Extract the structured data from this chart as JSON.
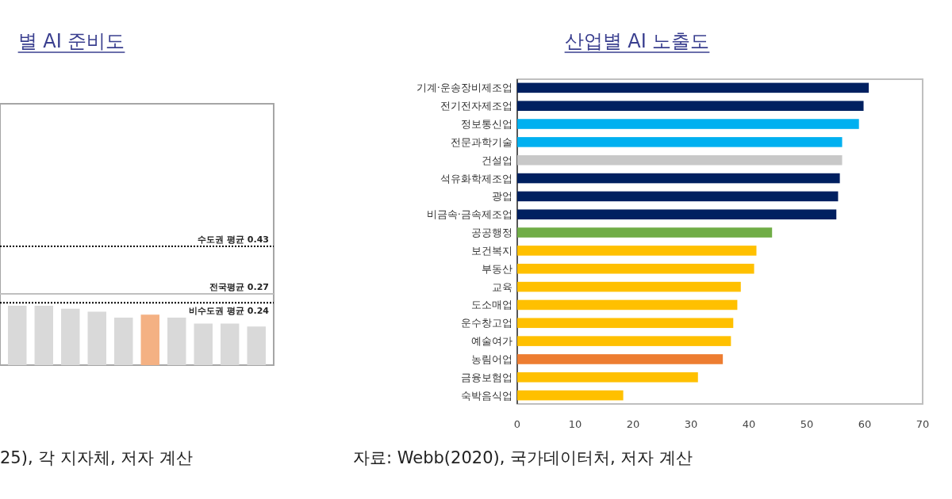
{
  "chart_data": [
    {
      "type": "bar",
      "title": "별 AI 준비도",
      "categories": [
        null,
        null,
        null,
        null,
        null,
        null,
        null,
        null,
        null,
        null
      ],
      "series": [
        {
          "colors": [
            "#d9d9d9",
            "#d9d9d9",
            "#d9d9d9",
            "#d9d9d9",
            "#d9d9d9",
            "#f4b183",
            "#d9d9d9",
            "#d9d9d9",
            "#d9d9d9",
            "#d9d9d9"
          ],
          "values": [
            0.23,
            0.23,
            0.22,
            0.21,
            0.19,
            0.2,
            0.19,
            0.17,
            0.17,
            0.16
          ]
        }
      ],
      "ylim": [
        0.03,
        0.91
      ],
      "ref_lines": [
        {
          "axis": "y",
          "value": 0.43,
          "label": "수도권 평균 0.43",
          "color": "#000000",
          "line_style": "dotted"
        },
        {
          "axis": "y",
          "value": 0.27,
          "label": "전국평균 0.27",
          "color": "#bfbfbf",
          "line_style": "solid"
        },
        {
          "axis": "y",
          "value": 0.24,
          "label": "비수도권 평균 0.24",
          "color": "#000000",
          "line_style": "dotted"
        }
      ],
      "annotations": [
        "25), 각 지자체, 저자 계산"
      ]
    },
    {
      "type": "bar",
      "orientation": "horizontal",
      "title": "산업별 AI 노출도",
      "categories": [
        "기계·운송장비제조업",
        "전기전자제조업",
        "정보통신업",
        "전문과학기술",
        "건설업",
        "석유화학제조업",
        "광업",
        "비금속·금속제조업",
        "공공행정",
        "보건복지",
        "부동산",
        "교육",
        "도소매업",
        "운수창고업",
        "예술여가",
        "농림어업",
        "금융보험업",
        "숙박음식업"
      ],
      "series": [
        {
          "colors": [
            "#002060",
            "#002060",
            "#00b0f0",
            "#00b0f0",
            "#c8c8c8",
            "#002060",
            "#002060",
            "#002060",
            "#70ad47",
            "#ffc000",
            "#ffc000",
            "#ffc000",
            "#ffc000",
            "#ffc000",
            "#ffc000",
            "#ed7d31",
            "#ffc000",
            "#ffc000"
          ],
          "values": [
            60.7,
            59.8,
            59.0,
            56.1,
            56.1,
            55.7,
            55.4,
            55.1,
            44.0,
            41.3,
            40.9,
            38.6,
            38.0,
            37.3,
            36.9,
            35.5,
            31.2,
            18.3
          ]
        }
      ],
      "xlim": [
        0,
        70
      ],
      "xticks": [
        0,
        10,
        20,
        30,
        40,
        50,
        60,
        70
      ],
      "annotations": [
        "자료: Webb(2020), 국가데이터처, 저자 계산"
      ]
    }
  ]
}
